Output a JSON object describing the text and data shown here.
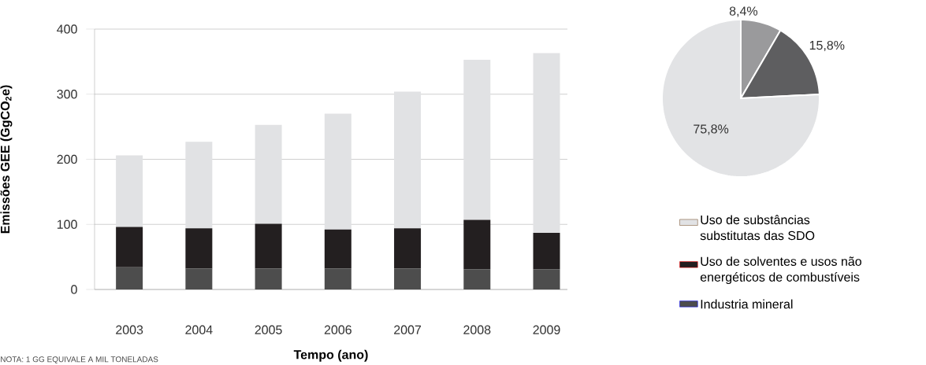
{
  "chart_data": [
    {
      "type": "bar",
      "categories": [
        "2003",
        "2004",
        "2005",
        "2006",
        "2007",
        "2008",
        "2009"
      ],
      "stacked": true,
      "series": [
        {
          "name": "Industria mineral",
          "color": "#4d4d4d",
          "values": [
            34,
            32,
            32,
            32,
            32,
            31,
            31
          ]
        },
        {
          "name": "Uso de solventes e usos não energéticos de combustíveis",
          "color": "#231f20",
          "values": [
            62,
            62,
            69,
            60,
            62,
            76,
            56
          ]
        },
        {
          "name": "Uso de substâncias substitutas das SDO",
          "color": "#e1e2e4",
          "values": [
            110,
            133,
            152,
            178,
            210,
            246,
            276
          ]
        }
      ],
      "ylim": [
        0,
        400
      ],
      "yticks": [
        0,
        100,
        200,
        300,
        400
      ],
      "grid": "y",
      "legend": "right",
      "xlabel": "Tempo (ano)",
      "ylabel": "Emissões GEE (GgCO$_{2}$e)",
      "annotations": [
        "NOTA: 1 GG EQUIVALE A MIL TONELADAS"
      ]
    },
    {
      "type": "pie",
      "categories": [
        null,
        null,
        null
      ],
      "values": [
        8.4,
        15.8,
        75.8
      ],
      "colors": [
        "#9a9a9c",
        "#5e5e60",
        "#e2e3e5"
      ],
      "value_labels": [
        "8,4%",
        "15,8%",
        "75,8%"
      ]
    }
  ]
}
